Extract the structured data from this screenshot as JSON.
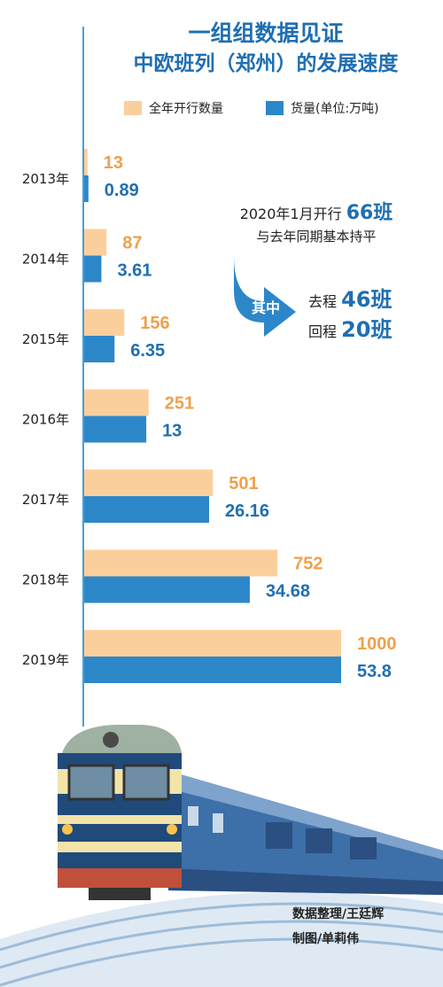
{
  "title": [
    "一组组数据见证",
    "中欧班列（郑州）的发展速度"
  ],
  "legend": {
    "count": "全年开行数量",
    "tonnage": "货量(单位:万吨)"
  },
  "colors": {
    "count": "#fbcf9c",
    "tonnage": "#2c87c9",
    "count_text": "#f0a04b",
    "tonnage_text": "#1f6fb2",
    "title": "#1f6fb2"
  },
  "chart_data": {
    "type": "bar",
    "orientation": "horizontal",
    "categories": [
      "2013年",
      "2014年",
      "2015年",
      "2016年",
      "2017年",
      "2018年",
      "2019年"
    ],
    "series": [
      {
        "name": "全年开行数量",
        "values": [
          13,
          87,
          156,
          251,
          501,
          752,
          1000
        ],
        "labels": [
          "13",
          "87",
          "156",
          "251",
          "501",
          "752",
          "1000"
        ]
      },
      {
        "name": "货量(单位:万吨)",
        "values": [
          0.89,
          3.61,
          6.35,
          13,
          26.16,
          34.68,
          53.8
        ],
        "labels": [
          "0.89",
          "3.61",
          "6.35",
          "13",
          "26.16",
          "34.68",
          "53.8"
        ]
      }
    ]
  },
  "note": {
    "prefix": "2020年1月开行",
    "total": "66班",
    "line2": "与去年同期基本持平",
    "arrow_label": "其中",
    "outbound_label": "去程",
    "outbound_value": "46班",
    "return_label": "回程",
    "return_value": "20班"
  },
  "credits": [
    "数据整理/王廷辉",
    "制图/单莉伟"
  ]
}
